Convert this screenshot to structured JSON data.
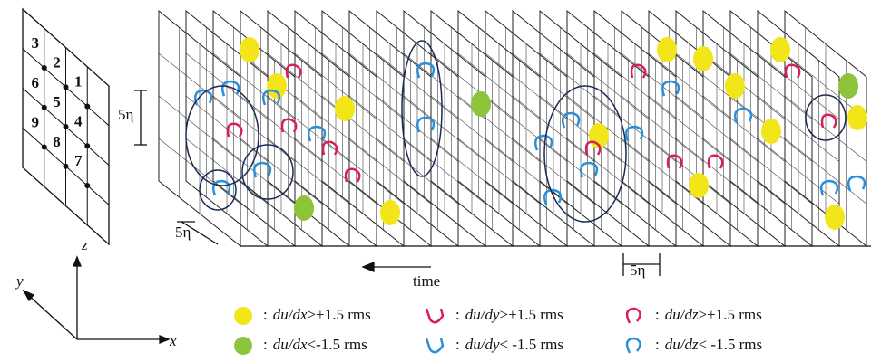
{
  "grid_labels": [
    "3",
    "2",
    "1",
    "6",
    "5",
    "4",
    "9",
    "8",
    "7"
  ],
  "scale_labels": {
    "vertical": "5η",
    "depth": "5η",
    "spacing": "5η"
  },
  "time_label": "time",
  "axes": {
    "x": "x",
    "y": "y",
    "z": "z"
  },
  "legend": {
    "separator": ":",
    "items": [
      {
        "var": "du/dx",
        "cond": ">+1.5 rms"
      },
      {
        "var": "du/dy",
        "cond": ">+1.5 rms"
      },
      {
        "var": "du/dz",
        "cond": ">+1.5 rms"
      },
      {
        "var": "du/dx",
        "cond": "<-1.5 rms"
      },
      {
        "var": "du/dy",
        "cond": "< -1.5 rms"
      },
      {
        "var": "du/dz",
        "cond": "< -1.5 rms"
      }
    ]
  }
}
